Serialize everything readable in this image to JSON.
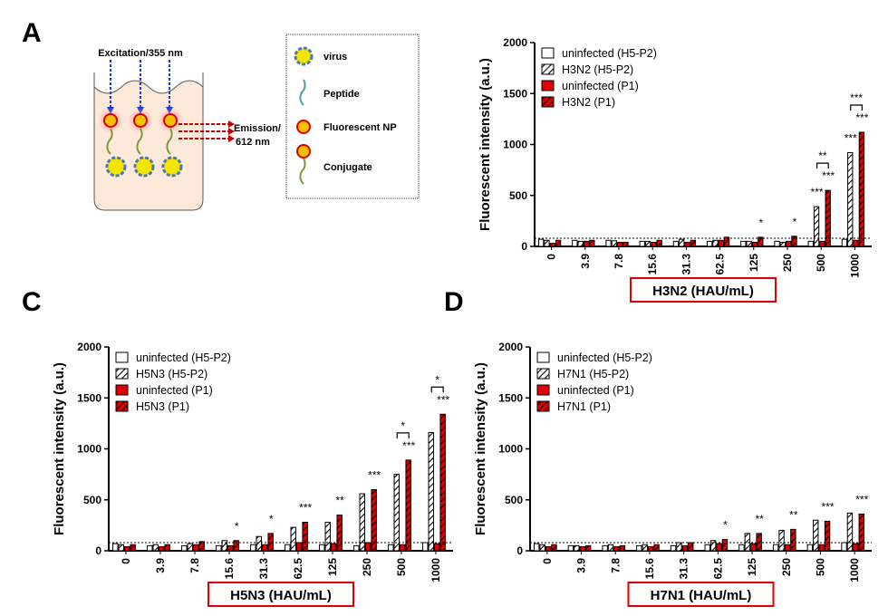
{
  "panels": [
    "A",
    "C",
    "D"
  ],
  "diagram": {
    "excitation": "Excitation/355 nm",
    "emission": [
      "Emission/",
      "612 nm"
    ],
    "legend": [
      "virus",
      "Peptide",
      "Fluorescent NP",
      "Conjugate"
    ]
  },
  "chart_data": [
    {
      "type": "bar",
      "x_label": "H3N2 (HAU/mL)",
      "y_label": "Fluorescent intensity (a.u.)",
      "categories": [
        "0",
        "3.9",
        "7.8",
        "15.6",
        "31.3",
        "62.5",
        "125",
        "250",
        "500",
        "1000"
      ],
      "series": [
        {
          "name": "uninfected (H5-P2)",
          "color": "#ffffff",
          "pattern": "solid",
          "values": [
            70,
            60,
            60,
            50,
            50,
            50,
            50,
            50,
            50,
            70
          ]
        },
        {
          "name": "H3N2 (H5-P2)",
          "color": "#ffffff",
          "pattern": "hatch",
          "values": [
            60,
            50,
            55,
            50,
            70,
            60,
            50,
            40,
            390,
            920
          ]
        },
        {
          "name": "uninfected (P1)",
          "color": "#e00000",
          "pattern": "solid",
          "values": [
            30,
            50,
            40,
            40,
            40,
            60,
            40,
            50,
            50,
            60
          ]
        },
        {
          "name": "H3N2 (P1)",
          "color": "#e00000",
          "pattern": "hatch",
          "values": [
            60,
            60,
            40,
            60,
            60,
            90,
            90,
            100,
            550,
            1120
          ]
        }
      ],
      "ylim": [
        0,
        2000
      ],
      "yticks": [
        0,
        500,
        1000,
        1500,
        2000
      ],
      "reference_line": 80,
      "annotations": [
        {
          "text": "*",
          "category": 6,
          "series": 3
        },
        {
          "text": "*",
          "category": 7,
          "series": 3
        },
        {
          "text": "***",
          "category": 8,
          "series": 1
        },
        {
          "text": "***",
          "category": 8,
          "series": 3
        },
        {
          "text": "***",
          "category": 9,
          "series": 1
        },
        {
          "text": "***",
          "category": 9,
          "series": 3
        }
      ],
      "brackets": [
        {
          "text": "**",
          "category": 8,
          "from": 1,
          "to": 3
        },
        {
          "text": "***",
          "category": 9,
          "from": 1,
          "to": 3
        }
      ]
    },
    {
      "type": "bar",
      "x_label": "H5N3 (HAU/mL)",
      "y_label": "Fluorescent intensity (a.u.)",
      "categories": [
        "0",
        "3.9",
        "7.8",
        "15.6",
        "31.3",
        "62.5",
        "125",
        "250",
        "500",
        "1000"
      ],
      "series": [
        {
          "name": "uninfected (H5-P2)",
          "color": "#ffffff",
          "pattern": "solid",
          "values": [
            70,
            50,
            50,
            50,
            60,
            60,
            60,
            50,
            60,
            80
          ]
        },
        {
          "name": "H5N3 (H5-P2)",
          "color": "#ffffff",
          "pattern": "hatch",
          "values": [
            60,
            60,
            70,
            100,
            140,
            230,
            280,
            560,
            750,
            1160
          ]
        },
        {
          "name": "uninfected (P1)",
          "color": "#e00000",
          "pattern": "solid",
          "values": [
            40,
            40,
            60,
            50,
            60,
            80,
            70,
            80,
            60,
            70
          ]
        },
        {
          "name": "H5N3 (P1)",
          "color": "#e00000",
          "pattern": "hatch",
          "values": [
            60,
            60,
            90,
            100,
            170,
            280,
            350,
            600,
            890,
            1340
          ]
        }
      ],
      "ylim": [
        0,
        2000
      ],
      "yticks": [
        0,
        500,
        1000,
        1500,
        2000
      ],
      "reference_line": 80,
      "annotations": [
        {
          "text": "*",
          "category": 3,
          "series": 3
        },
        {
          "text": "*",
          "category": 4,
          "series": 3
        },
        {
          "text": "***",
          "category": 5,
          "series": 3
        },
        {
          "text": "**",
          "category": 6,
          "series": 3
        },
        {
          "text": "***",
          "category": 7,
          "series": 3
        },
        {
          "text": "***",
          "category": 8,
          "series": 3
        },
        {
          "text": "***",
          "category": 9,
          "series": 3
        }
      ],
      "brackets": [
        {
          "text": "*",
          "category": 8,
          "from": 1,
          "to": 3
        },
        {
          "text": "*",
          "category": 9,
          "from": 1,
          "to": 3
        }
      ]
    },
    {
      "type": "bar",
      "x_label": "H7N1 (HAU/mL)",
      "y_label": "Fluorescent intensity (a.u.)",
      "categories": [
        "0",
        "3.9",
        "7.8",
        "15.6",
        "31.3",
        "62.5",
        "125",
        "250",
        "500",
        "1000"
      ],
      "series": [
        {
          "name": "uninfected (H5-P2)",
          "color": "#ffffff",
          "pattern": "solid",
          "values": [
            70,
            50,
            50,
            50,
            50,
            60,
            60,
            60,
            60,
            80
          ]
        },
        {
          "name": "H7N1 (H5-P2)",
          "color": "#ffffff",
          "pattern": "hatch",
          "values": [
            60,
            50,
            60,
            60,
            80,
            100,
            170,
            200,
            300,
            370
          ]
        },
        {
          "name": "uninfected (P1)",
          "color": "#e00000",
          "pattern": "solid",
          "values": [
            40,
            40,
            40,
            40,
            50,
            70,
            70,
            60,
            60,
            70
          ]
        },
        {
          "name": "H7N1 (P1)",
          "color": "#e00000",
          "pattern": "hatch",
          "values": [
            60,
            50,
            50,
            60,
            80,
            110,
            170,
            210,
            290,
            360
          ]
        }
      ],
      "ylim": [
        0,
        2000
      ],
      "yticks": [
        0,
        500,
        1000,
        1500,
        2000
      ],
      "reference_line": 80,
      "annotations": [
        {
          "text": "*",
          "category": 5,
          "series": 3
        },
        {
          "text": "**",
          "category": 6,
          "series": 3
        },
        {
          "text": "**",
          "category": 7,
          "series": 3
        },
        {
          "text": "***",
          "category": 8,
          "series": 3
        },
        {
          "text": "***",
          "category": 9,
          "series": 3
        }
      ],
      "brackets": []
    }
  ]
}
